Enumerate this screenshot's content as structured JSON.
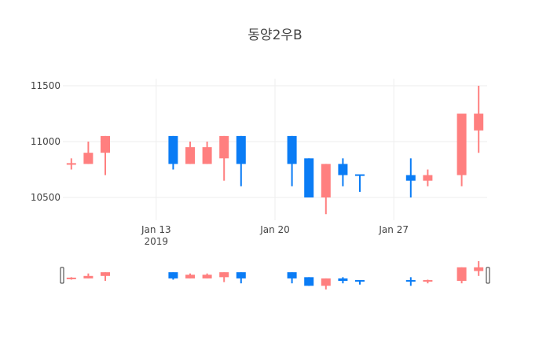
{
  "chart_data": {
    "type": "candlestick",
    "title": "동양2우B",
    "xlabel": "",
    "ylabel": "",
    "ylim": [
      10300,
      11560
    ],
    "y_ticks": [
      10500,
      11000,
      11500
    ],
    "y_tick_labels": [
      "10500",
      "11000",
      "11500"
    ],
    "x_ticks": [
      "2019-01-13",
      "2019-01-20",
      "2019-01-27"
    ],
    "x_tick_labels": [
      [
        "Jan 13",
        "2019"
      ],
      [
        "Jan 20"
      ],
      [
        "Jan 27"
      ]
    ],
    "xlim": [
      "2019-01-07T12:00",
      "2019-02-01T12:00"
    ],
    "grid": true,
    "legend": false,
    "rangeslider": true,
    "colors": {
      "increasing": "#ff7f7f",
      "decreasing": "#0a7cf5",
      "grid": "#eeeeee",
      "text": "#444444"
    },
    "series": [
      {
        "date": "2019-01-08",
        "open": 10800,
        "high": 10850,
        "low": 10750,
        "close": 10800,
        "direction": "increasing"
      },
      {
        "date": "2019-01-09",
        "open": 10800,
        "high": 11000,
        "low": 10800,
        "close": 10900,
        "direction": "increasing"
      },
      {
        "date": "2019-01-10",
        "open": 10900,
        "high": 11050,
        "low": 10700,
        "close": 11050,
        "direction": "increasing"
      },
      {
        "date": "2019-01-14",
        "open": 11050,
        "high": 11050,
        "low": 10750,
        "close": 10800,
        "direction": "decreasing"
      },
      {
        "date": "2019-01-15",
        "open": 10800,
        "high": 11000,
        "low": 10800,
        "close": 10950,
        "direction": "increasing"
      },
      {
        "date": "2019-01-16",
        "open": 10800,
        "high": 11000,
        "low": 10800,
        "close": 10950,
        "direction": "increasing"
      },
      {
        "date": "2019-01-17",
        "open": 10850,
        "high": 11050,
        "low": 10650,
        "close": 11050,
        "direction": "increasing"
      },
      {
        "date": "2019-01-18",
        "open": 11050,
        "high": 11050,
        "low": 10600,
        "close": 10800,
        "direction": "decreasing"
      },
      {
        "date": "2019-01-21",
        "open": 11050,
        "high": 11050,
        "low": 10600,
        "close": 10800,
        "direction": "decreasing"
      },
      {
        "date": "2019-01-22",
        "open": 10850,
        "high": 10850,
        "low": 10500,
        "close": 10500,
        "direction": "decreasing"
      },
      {
        "date": "2019-01-23",
        "open": 10500,
        "high": 10800,
        "low": 10350,
        "close": 10800,
        "direction": "increasing"
      },
      {
        "date": "2019-01-24",
        "open": 10800,
        "high": 10850,
        "low": 10600,
        "close": 10700,
        "direction": "decreasing"
      },
      {
        "date": "2019-01-25",
        "open": 10700,
        "high": 10700,
        "low": 10550,
        "close": 10700,
        "direction": "decreasing"
      },
      {
        "date": "2019-01-28",
        "open": 10700,
        "high": 10850,
        "low": 10500,
        "close": 10650,
        "direction": "decreasing"
      },
      {
        "date": "2019-01-29",
        "open": 10650,
        "high": 10750,
        "low": 10600,
        "close": 10700,
        "direction": "increasing"
      },
      {
        "date": "2019-01-31",
        "open": 10700,
        "high": 11250,
        "low": 10600,
        "close": 11250,
        "direction": "increasing"
      },
      {
        "date": "2019-02-01",
        "open": 11100,
        "high": 11500,
        "low": 10900,
        "close": 11250,
        "direction": "increasing"
      }
    ]
  }
}
